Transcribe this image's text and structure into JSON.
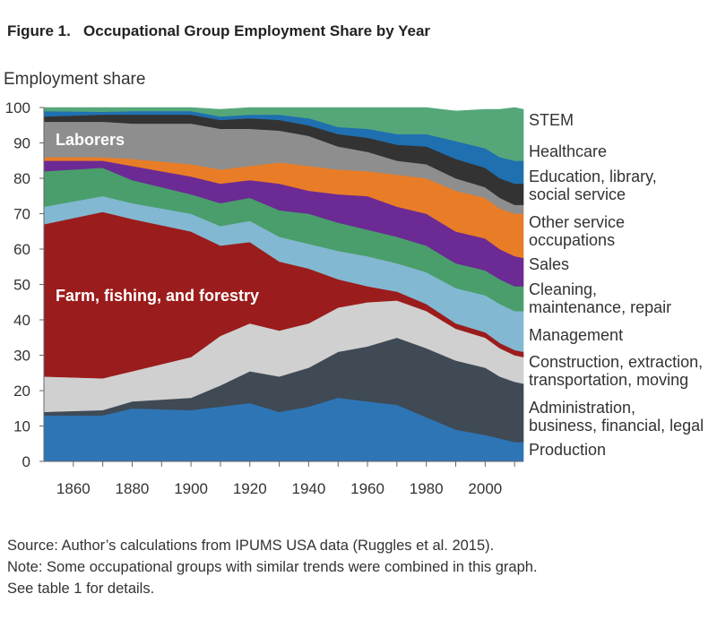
{
  "figure": {
    "title": "Figure 1.   Occupational Group Employment Share by Year",
    "notes": [
      "Source: Author’s calculations from IPUMS USA data (Ruggles et al. 2015).",
      "Note: Some occupational groups with similar trends were combined in this graph.",
      "See table 1 for details."
    ]
  },
  "chart_data": {
    "type": "area",
    "stacked": true,
    "title": "Occupational Group Employment Share by Year",
    "ylabel": "Employment share",
    "xlabel": "",
    "xlim": [
      1850,
      2013
    ],
    "ylim": [
      0,
      100
    ],
    "x_ticks": [
      1860,
      1880,
      1900,
      1920,
      1940,
      1960,
      1980,
      2000
    ],
    "y_ticks": [
      0,
      10,
      20,
      30,
      40,
      50,
      60,
      70,
      80,
      90,
      100
    ],
    "grid": false,
    "x": [
      1850,
      1870,
      1880,
      1900,
      1910,
      1920,
      1930,
      1940,
      1950,
      1960,
      1970,
      1980,
      1990,
      2000,
      2005,
      2010,
      2013
    ],
    "series": [
      {
        "name": "Production",
        "color": "#2e75b6",
        "values": [
          13,
          13,
          15,
          14.5,
          15.5,
          16.5,
          14,
          15.5,
          18,
          17,
          16,
          12.5,
          9,
          7.5,
          6.5,
          5.5,
          5.5
        ]
      },
      {
        "name": "Administration, business, financial, legal",
        "color": "#3f4a55",
        "values": [
          1,
          1.5,
          2,
          3.5,
          6,
          9,
          10,
          11,
          13,
          15.5,
          19,
          19.5,
          19.5,
          19,
          17.5,
          17,
          16.5
        ]
      },
      {
        "name": "Construction, extraction, transportation, moving",
        "color": "#d0d0d0",
        "values": [
          10,
          9,
          8.5,
          11.5,
          14,
          13.5,
          13,
          12.5,
          12.5,
          12.5,
          10.5,
          10.5,
          9,
          8.5,
          8,
          7.5,
          7.5
        ]
      },
      {
        "name": "Farm, fishing, and forestry",
        "color": "#9b1c1c",
        "values": [
          43,
          47,
          43,
          35.5,
          25.5,
          23,
          19.5,
          15.5,
          8,
          4.5,
          2.5,
          2,
          1.5,
          1.5,
          1.5,
          1.5,
          1.5
        ]
      },
      {
        "name": "Management",
        "color": "#82b8d1",
        "values": [
          5,
          4.5,
          4.5,
          5,
          5.5,
          6,
          7,
          7,
          8,
          8.5,
          8,
          9,
          10,
          10.5,
          11,
          11,
          11.5
        ]
      },
      {
        "name": "Cleaning, maintenance, repair",
        "color": "#4a9e6b",
        "values": [
          10,
          8,
          6.5,
          5.5,
          6.5,
          6.5,
          7.5,
          8.5,
          8,
          7.5,
          7.5,
          7.5,
          7,
          7,
          7,
          7,
          7
        ]
      },
      {
        "name": "Sales",
        "color": "#6b2a94",
        "values": [
          3,
          2,
          4,
          5,
          5.5,
          5,
          7.5,
          6.5,
          8,
          9.5,
          8.5,
          9,
          9,
          9,
          8.5,
          8.5,
          8
        ]
      },
      {
        "name": "Other service occupations",
        "color": "#e97d27",
        "values": [
          1,
          1,
          2,
          3.5,
          4,
          4,
          6,
          7,
          7,
          7,
          9,
          10,
          11.5,
          11.5,
          11.5,
          12,
          12.5
        ]
      },
      {
        "name": "Laborers",
        "color": "#8e8e8e",
        "values": [
          10,
          10,
          10,
          11.5,
          11.5,
          10.5,
          9,
          8.5,
          6.5,
          5.5,
          4,
          4,
          3.5,
          3,
          3,
          2.5,
          2.5
        ]
      },
      {
        "name": "Education, library, social service",
        "color": "#333333",
        "values": [
          1.5,
          2,
          2.5,
          2.5,
          2.5,
          3,
          3,
          3,
          3.5,
          4,
          4.5,
          5,
          5.5,
          5.5,
          5.5,
          6,
          6
        ]
      },
      {
        "name": "Healthcare",
        "color": "#1f70b0",
        "values": [
          1.5,
          0.8,
          1,
          1,
          1,
          1,
          1.5,
          2,
          2,
          2.5,
          3,
          3.5,
          5,
          5.5,
          6,
          6.5,
          6.5
        ]
      },
      {
        "name": "STEM",
        "color": "#55a77a",
        "values": [
          1,
          1.2,
          1,
          1,
          2,
          2,
          2,
          3,
          5.5,
          6,
          7.5,
          7.5,
          8.5,
          11,
          13.5,
          15,
          14.5
        ]
      }
    ],
    "inner_labels": [
      "Laborers",
      "Farm, fishing, and forestry"
    ],
    "legend": {
      "placement": "right",
      "entries": [
        {
          "lines": [
            "STEM"
          ]
        },
        {
          "lines": [
            "Healthcare"
          ]
        },
        {
          "lines": [
            "Education, library,",
            "social service"
          ]
        },
        {
          "lines": [
            "Other service",
            "occupations"
          ]
        },
        {
          "lines": [
            "Sales"
          ]
        },
        {
          "lines": [
            "Cleaning,",
            "maintenance, repair"
          ]
        },
        {
          "lines": [
            "Management"
          ]
        },
        {
          "lines": [
            "Construction, extraction,",
            "transportation, moving"
          ]
        },
        {
          "lines": [
            "Administration,",
            "business, financial, legal"
          ]
        },
        {
          "lines": [
            "Production"
          ]
        }
      ]
    }
  }
}
